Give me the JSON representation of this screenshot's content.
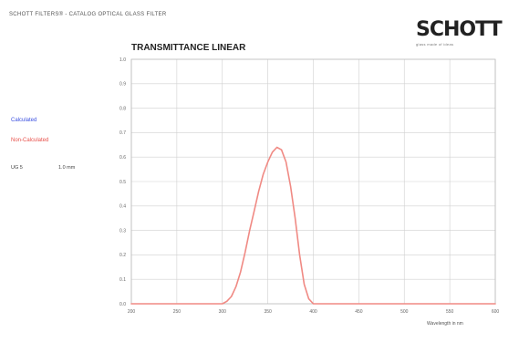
{
  "header": {
    "catalog_title": "SCHOTT FILTERS® - CATALOG OPTICAL GLASS FILTER"
  },
  "logo": {
    "wordmark": "SCHOTT",
    "tagline": "glass made of ideas"
  },
  "legend": {
    "calculated": "Calculated",
    "non_calculated": "Non-Calculated"
  },
  "filter_info": {
    "thickness_label": "UG 5",
    "thickness_value": "1.0 mm"
  },
  "colors": {
    "curve": "#f08a84",
    "grid": "#d0d0d0",
    "axis": "#bdbdbd",
    "calculated": "#3a4fe0",
    "non_calculated": "#e8504a"
  },
  "chart_data": {
    "type": "line",
    "title": "TRANSMITTANCE LINEAR",
    "xlabel": "Wavelength in nm",
    "ylabel": "",
    "xlim": [
      200,
      600
    ],
    "ylim": [
      0,
      1.0
    ],
    "xticks": [
      200,
      250,
      300,
      350,
      400,
      450,
      500,
      550,
      600
    ],
    "yticks": [
      0.0,
      0.1,
      0.2,
      0.3,
      0.4,
      0.5,
      0.6,
      0.7,
      0.8,
      0.9,
      1.0
    ],
    "xtick_labels": [
      "200",
      "250",
      "300",
      "350",
      "400",
      "450",
      "500",
      "550",
      "600"
    ],
    "ytick_labels": [
      "0.0",
      "0.1",
      "0.2",
      "0.3",
      "0.4",
      "0.5",
      "0.6",
      "0.7",
      "0.8",
      "0.9",
      "1.0"
    ],
    "grid": true,
    "series": [
      {
        "x": [
          200,
          300,
          305,
          310,
          315,
          320,
          325,
          330,
          335,
          340,
          345,
          350,
          355,
          360,
          365,
          370,
          375,
          380,
          385,
          390,
          395,
          400,
          600
        ],
        "y": [
          0.0,
          0.0,
          0.01,
          0.03,
          0.07,
          0.13,
          0.21,
          0.3,
          0.38,
          0.46,
          0.53,
          0.58,
          0.62,
          0.64,
          0.63,
          0.58,
          0.48,
          0.35,
          0.2,
          0.08,
          0.02,
          0.0,
          0.0
        ]
      }
    ]
  }
}
